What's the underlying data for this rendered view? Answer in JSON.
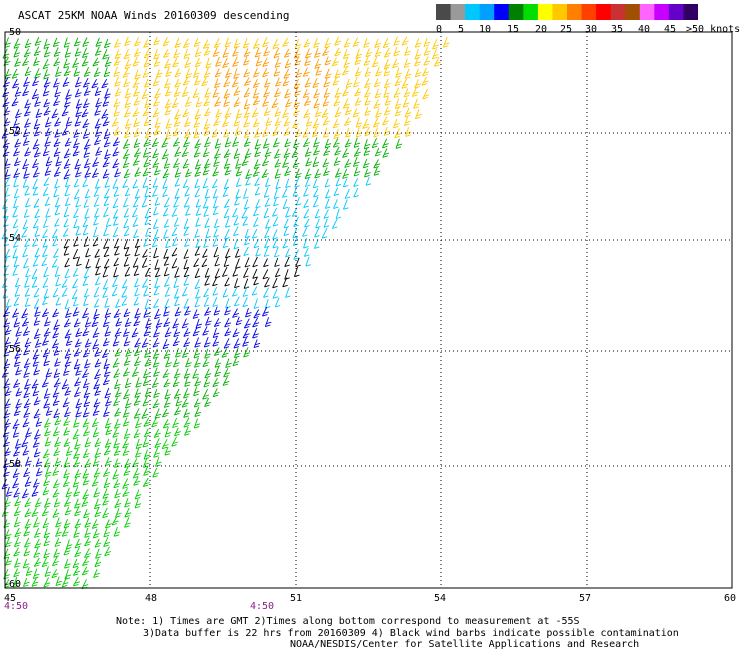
{
  "title": "ASCAT 25KM NOAA Winds 20160309 descending",
  "colorbar": {
    "tick_labels": [
      "0",
      "5",
      "10",
      "15",
      "20",
      "25",
      "30",
      "35",
      "40",
      "45",
      ">50 knots"
    ],
    "colors": [
      "#4a4a4a",
      "#9a9a9a",
      "#00c8ff",
      "#00a0ff",
      "#0000ff",
      "#008000",
      "#00dd00",
      "#ffff00",
      "#ffc800",
      "#ff8000",
      "#ff4000",
      "#ff0000",
      "#c83232",
      "#a05000",
      "#ff64ff",
      "#c800ff",
      "#6400c8",
      "#320064"
    ]
  },
  "map": {
    "lat_labels": [
      "-50",
      "-52",
      "-54",
      "-56",
      "-58",
      "-60"
    ],
    "lon_labels": [
      "45",
      "48",
      "51",
      "54",
      "57",
      "60"
    ],
    "times": [
      "4:50",
      "4:50"
    ]
  },
  "notes": {
    "line1": "Note: 1) Times are GMT 2)Times along bottom correspond to measurement at -55S",
    "line2": "3)Data buffer is 22 hrs from 20160309 4) Black wind barbs indicate possible contamination",
    "line3": "NOAA/NESDIS/Center for Satellite Applications and Research"
  }
}
